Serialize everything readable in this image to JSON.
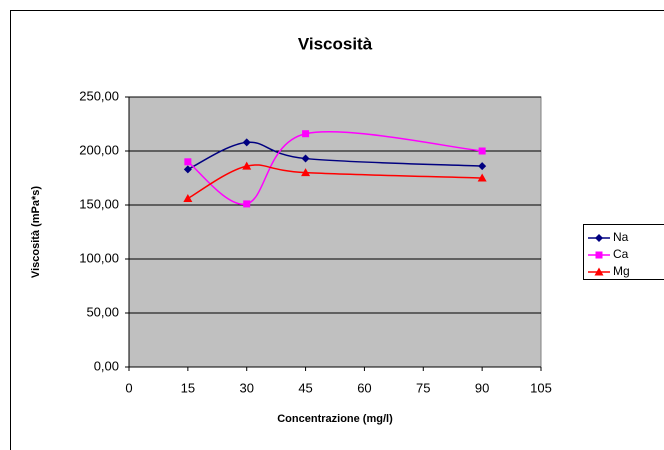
{
  "chart_data": {
    "type": "line",
    "title": "Viscosità",
    "x_label": "Concentrazione (mg/l)",
    "y_label": "Viscosità (mPa*s)",
    "x": [
      15,
      30,
      45,
      90
    ],
    "series": [
      {
        "name": "Na",
        "color": "#000080",
        "marker": "diamond",
        "values": [
          183,
          208,
          193,
          186
        ]
      },
      {
        "name": "Ca",
        "color": "#ff00ff",
        "marker": "square",
        "values": [
          190,
          151,
          216,
          200
        ]
      },
      {
        "name": "Mg",
        "color": "#ff0000",
        "marker": "triangle",
        "values": [
          156,
          186,
          180,
          175
        ]
      }
    ],
    "smooth": true,
    "xlim": [
      0,
      105
    ],
    "xticks": [
      0,
      15,
      30,
      45,
      60,
      75,
      90,
      105
    ],
    "ylim": [
      0,
      250
    ],
    "yticks": [
      {
        "value": 0,
        "label": "0,00"
      },
      {
        "value": 50,
        "label": "50,00"
      },
      {
        "value": 100,
        "label": "100,00"
      },
      {
        "value": 150,
        "label": "150,00"
      },
      {
        "value": 200,
        "label": "200,00"
      },
      {
        "value": 250,
        "label": "250,00"
      }
    ],
    "grid": true,
    "legend": "right"
  }
}
